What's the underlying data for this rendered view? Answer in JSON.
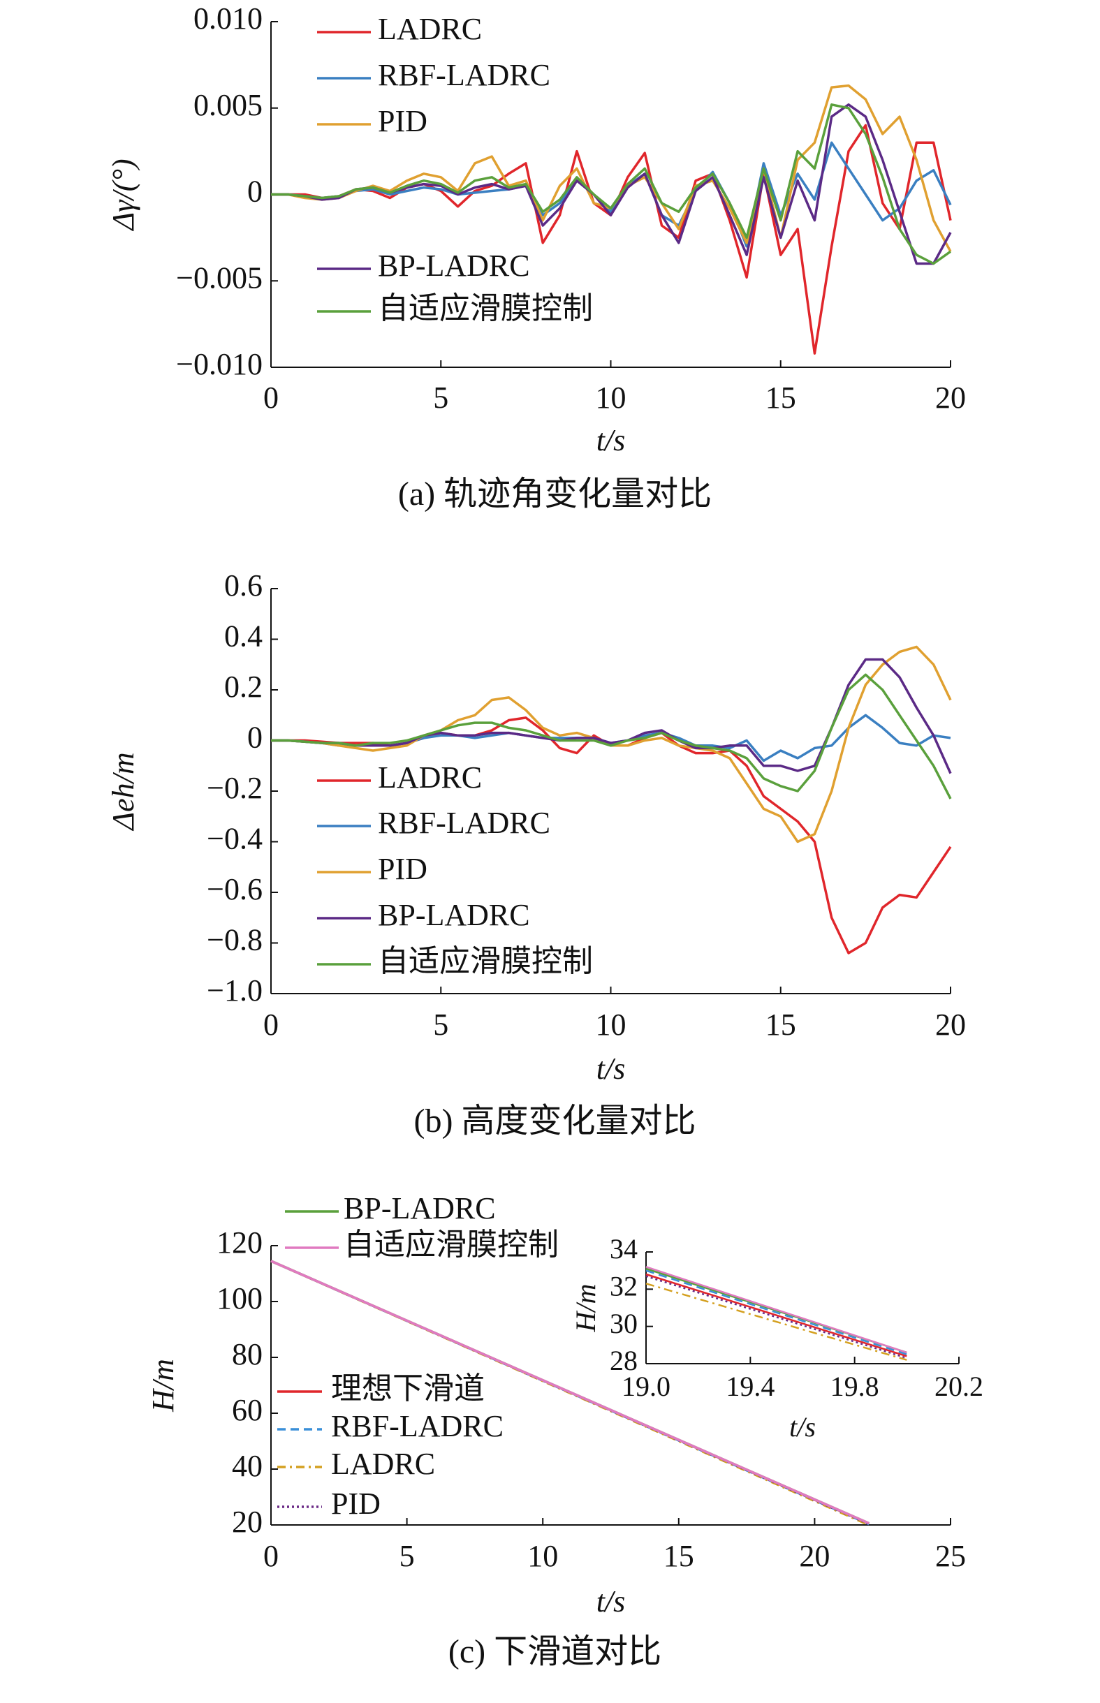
{
  "chart_data": [
    {
      "type": "line",
      "title": "(a) 轨迹角变化量对比",
      "xlabel": "t/s",
      "ylabel": "Δγ/(°)",
      "x": [
        0,
        0.5,
        1,
        1.5,
        2,
        2.5,
        3,
        3.5,
        4,
        4.5,
        5,
        5.5,
        6,
        6.5,
        7,
        7.5,
        8,
        8.5,
        9,
        9.5,
        10,
        10.5,
        11,
        11.5,
        12,
        12.5,
        13,
        13.5,
        14,
        14.5,
        15,
        15.5,
        16,
        16.5,
        17,
        17.5,
        18,
        18.5,
        19,
        19.5,
        20
      ],
      "xlim": [
        0,
        20
      ],
      "xticks": [
        0,
        5,
        10,
        15,
        20
      ],
      "ylim": [
        -0.01,
        0.01
      ],
      "yticks": [
        {
          "value": -0.01,
          "label": "−0.010"
        },
        {
          "value": -0.005,
          "label": "−0.005"
        },
        0,
        {
          "value": 0.005,
          "label": "0.005"
        },
        {
          "value": 0.01,
          "label": "0.010"
        }
      ],
      "series": [
        {
          "name": "LADRC",
          "color": "#e0262b",
          "values": [
            0,
            0,
            0,
            -0.0002,
            -0.0001,
            0.0003,
            0.0002,
            -0.0002,
            0.0004,
            0.0006,
            0.0002,
            -0.0007,
            0.0002,
            0.0005,
            0.0012,
            0.0018,
            -0.0028,
            -0.0012,
            0.0025,
            -0.0005,
            -0.0012,
            0.001,
            0.0024,
            -0.0018,
            -0.0025,
            0.0008,
            0.0012,
            -0.0015,
            -0.0048,
            0.0012,
            -0.0035,
            -0.002,
            -0.0092,
            -0.003,
            0.0025,
            0.004,
            -0.0005,
            -0.002,
            0.003,
            0.003,
            -0.0015
          ]
        },
        {
          "name": "RBF-LADRC",
          "color": "#3a7fc1",
          "values": [
            0,
            0,
            -0.0001,
            -0.0002,
            -0.0001,
            0.0002,
            0.0003,
            0,
            0.0002,
            0.0004,
            0.0003,
            0,
            0.0001,
            0.0002,
            0.0003,
            0.0005,
            -0.0012,
            -0.0005,
            0.0008,
            0,
            -0.001,
            0.0005,
            0.0012,
            -0.0012,
            -0.0018,
            0.0002,
            0.0013,
            -0.0005,
            -0.003,
            0.0018,
            -0.0012,
            0.0012,
            -0.0003,
            0.003,
            0.0015,
            0,
            -0.0015,
            -0.0008,
            0.0008,
            0.0014,
            -0.0006
          ]
        },
        {
          "name": "PID",
          "color": "#e0a030",
          "values": [
            0,
            0,
            -0.0002,
            -0.0003,
            -0.0002,
            0.0002,
            0.0005,
            0.0002,
            0.0008,
            0.0012,
            0.001,
            0.0002,
            0.0018,
            0.0022,
            0.0005,
            0.0008,
            -0.0015,
            0.0005,
            0.0015,
            -0.0005,
            -0.0008,
            0.0005,
            0.001,
            -0.0005,
            -0.002,
            0.0005,
            0.0008,
            -0.0008,
            -0.0028,
            0.0015,
            -0.0025,
            0.002,
            0.003,
            0.0062,
            0.0063,
            0.0055,
            0.0035,
            0.0045,
            0.002,
            -0.0015,
            -0.0033
          ]
        },
        {
          "name": "BP-LADRC",
          "color": "#5b2a86",
          "values": [
            0,
            0,
            -0.0001,
            -0.0003,
            -0.0002,
            0.0003,
            0.0004,
            0.0001,
            0.0004,
            0.0006,
            0.0005,
            0,
            0.0004,
            0.0006,
            0.0003,
            0.0005,
            -0.0018,
            -0.0008,
            0.0008,
            0,
            -0.0012,
            0.0004,
            0.0012,
            -0.0012,
            -0.0028,
            0.0002,
            0.001,
            -0.0012,
            -0.0035,
            0.001,
            -0.0025,
            0.0008,
            -0.0015,
            0.0045,
            0.0052,
            0.0045,
            0.002,
            -0.001,
            -0.004,
            -0.004,
            -0.0022
          ]
        },
        {
          "name": "自适应滑膜控制",
          "color": "#5aa03c",
          "values": [
            0,
            0,
            -0.0001,
            -0.0002,
            -0.0001,
            0.0003,
            0.0004,
            0.0001,
            0.0005,
            0.0008,
            0.0006,
            0.0001,
            0.0008,
            0.001,
            0.0004,
            0.0006,
            -0.001,
            -0.0003,
            0.001,
            0,
            -0.0008,
            0.0006,
            0.0015,
            -0.0005,
            -0.001,
            0.0004,
            0.0012,
            -0.0005,
            -0.0025,
            0.0015,
            -0.0015,
            0.0025,
            0.0015,
            0.0052,
            0.005,
            0.0035,
            0.001,
            -0.002,
            -0.0035,
            -0.004,
            -0.0033
          ]
        }
      ]
    },
    {
      "type": "line",
      "title": "(b) 高度变化量对比",
      "xlabel": "t/s",
      "ylabel": "Δeh/m",
      "x": [
        0,
        0.5,
        1,
        1.5,
        2,
        2.5,
        3,
        3.5,
        4,
        4.5,
        5,
        5.5,
        6,
        6.5,
        7,
        7.5,
        8,
        8.5,
        9,
        9.5,
        10,
        10.5,
        11,
        11.5,
        12,
        12.5,
        13,
        13.5,
        14,
        14.5,
        15,
        15.5,
        16,
        16.5,
        17,
        17.5,
        18,
        18.5,
        19,
        19.5,
        20
      ],
      "xlim": [
        0,
        20
      ],
      "xticks": [
        0,
        5,
        10,
        15,
        20
      ],
      "ylim": [
        -1,
        0.6
      ],
      "yticks": [
        {
          "value": -1,
          "label": "−1.0"
        },
        {
          "value": -0.8,
          "label": "−0.8"
        },
        {
          "value": -0.6,
          "label": "−0.6"
        },
        {
          "value": -0.4,
          "label": "−0.4"
        },
        {
          "value": -0.2,
          "label": "−0.2"
        },
        0,
        0.2,
        0.4,
        0.6
      ],
      "series": [
        {
          "name": "LADRC",
          "color": "#e0262b",
          "values": [
            0,
            0,
            0,
            -0.005,
            -0.01,
            -0.01,
            -0.01,
            -0.02,
            -0.01,
            0.01,
            0.03,
            0.02,
            0.02,
            0.04,
            0.08,
            0.09,
            0.04,
            -0.03,
            -0.05,
            0.02,
            -0.02,
            -0.02,
            0.01,
            0.03,
            -0.02,
            -0.05,
            -0.05,
            -0.04,
            -0.1,
            -0.22,
            -0.27,
            -0.32,
            -0.4,
            -0.7,
            -0.84,
            -0.8,
            -0.66,
            -0.61,
            -0.62,
            -0.52,
            -0.42
          ]
        },
        {
          "name": "RBF-LADRC",
          "color": "#3a7fc1",
          "values": [
            0,
            0,
            -0.005,
            -0.01,
            -0.02,
            -0.02,
            -0.02,
            -0.02,
            -0.01,
            0.01,
            0.02,
            0.02,
            0.01,
            0.02,
            0.03,
            0.02,
            0.01,
            0.01,
            0.01,
            0.01,
            -0.01,
            0,
            0.02,
            0.03,
            0.01,
            -0.02,
            -0.02,
            -0.03,
            0,
            -0.08,
            -0.04,
            -0.07,
            -0.03,
            -0.02,
            0.05,
            0.1,
            0.05,
            -0.01,
            -0.02,
            0.02,
            0.01
          ]
        },
        {
          "name": "PID",
          "color": "#e0a030",
          "values": [
            0,
            0,
            -0.005,
            -0.01,
            -0.02,
            -0.03,
            -0.04,
            -0.03,
            -0.02,
            0.02,
            0.04,
            0.08,
            0.1,
            0.16,
            0.17,
            0.12,
            0.05,
            0.02,
            0.03,
            0.01,
            -0.02,
            -0.02,
            0,
            0.01,
            -0.02,
            -0.03,
            -0.04,
            -0.07,
            -0.17,
            -0.27,
            -0.3,
            -0.4,
            -0.37,
            -0.2,
            0.05,
            0.22,
            0.3,
            0.35,
            0.37,
            0.3,
            0.16
          ]
        },
        {
          "name": "BP-LADRC",
          "color": "#5b2a86",
          "values": [
            0,
            0,
            -0.005,
            -0.01,
            -0.01,
            -0.02,
            -0.02,
            -0.02,
            -0.01,
            0.02,
            0.03,
            0.02,
            0.02,
            0.03,
            0.03,
            0.02,
            0.01,
            0,
            0.01,
            0.01,
            -0.01,
            0,
            0.03,
            0.04,
            0,
            -0.03,
            -0.03,
            -0.02,
            -0.02,
            -0.1,
            -0.1,
            -0.12,
            -0.1,
            0.05,
            0.22,
            0.32,
            0.32,
            0.25,
            0.13,
            0.02,
            -0.13
          ]
        },
        {
          "name": "自适应滑膜控制",
          "color": "#5aa03c",
          "values": [
            0,
            0,
            -0.005,
            -0.01,
            -0.01,
            -0.02,
            -0.01,
            -0.01,
            0,
            0.02,
            0.04,
            0.06,
            0.07,
            0.07,
            0.05,
            0.04,
            0.02,
            0,
            0,
            0,
            -0.02,
            0,
            0.01,
            0.03,
            0,
            -0.02,
            -0.03,
            -0.04,
            -0.07,
            -0.15,
            -0.18,
            -0.2,
            -0.12,
            0.05,
            0.2,
            0.26,
            0.2,
            0.1,
            0,
            -0.1,
            -0.23
          ]
        }
      ]
    },
    {
      "type": "line",
      "title": "(c) 下滑道对比",
      "xlabel": "t/s",
      "ylabel": "H/m",
      "x": [
        0,
        22
      ],
      "xlim": [
        0,
        25
      ],
      "xticks": [
        0,
        5,
        10,
        15,
        20,
        25
      ],
      "ylim": [
        20,
        120
      ],
      "yticks": [
        20,
        40,
        60,
        80,
        100,
        120
      ],
      "series": [
        {
          "name": "理想下滑道",
          "color": "#e0262b",
          "linestyle": "solid",
          "values": [
            114.5,
            20.5
          ]
        },
        {
          "name": "RBF-LADRC",
          "color": "#3a8fd8",
          "linestyle": "dashed",
          "values": [
            114.5,
            20.3
          ]
        },
        {
          "name": "LADRC",
          "color": "#d4a020",
          "linestyle": "dashdot",
          "values": [
            114.5,
            20.0
          ]
        },
        {
          "name": "PID",
          "color": "#6a2a86",
          "linestyle": "dotted",
          "values": [
            114.5,
            20.4
          ]
        },
        {
          "name": "BP-LADRC",
          "color": "#5aa03c",
          "linestyle": "solid",
          "values": [
            114.5,
            20.6
          ]
        },
        {
          "name": "自适应滑膜控制",
          "color": "#e07ac0",
          "linestyle": "solid",
          "values": [
            114.5,
            20.6
          ]
        }
      ]
    },
    {
      "type": "line",
      "xlabel": "t/s",
      "ylabel": "H/m",
      "x": [
        19.0,
        20.0
      ],
      "xlim": [
        19.0,
        20.2
      ],
      "xticks": [
        {
          "value": 19.0,
          "label": "19.0"
        },
        19.4,
        19.8,
        20.2
      ],
      "ylim": [
        28,
        34
      ],
      "yticks": [
        28,
        30,
        32,
        34
      ],
      "series": [
        {
          "color": "#5aa03c",
          "linestyle": "solid",
          "values": [
            33.1,
            28.6
          ]
        },
        {
          "color": "#e07ac0",
          "linestyle": "solid",
          "values": [
            33.2,
            28.6
          ]
        },
        {
          "color": "#3a8fd8",
          "linestyle": "dashed",
          "values": [
            33.0,
            28.5
          ]
        },
        {
          "color": "#d4a020",
          "linestyle": "dashdot",
          "values": [
            32.3,
            28.2
          ]
        },
        {
          "color": "#6a2a86",
          "linestyle": "dotted",
          "values": [
            32.7,
            28.3
          ]
        },
        {
          "color": "#e0262b",
          "linestyle": "solid",
          "values": [
            32.8,
            28.4
          ]
        }
      ]
    }
  ]
}
